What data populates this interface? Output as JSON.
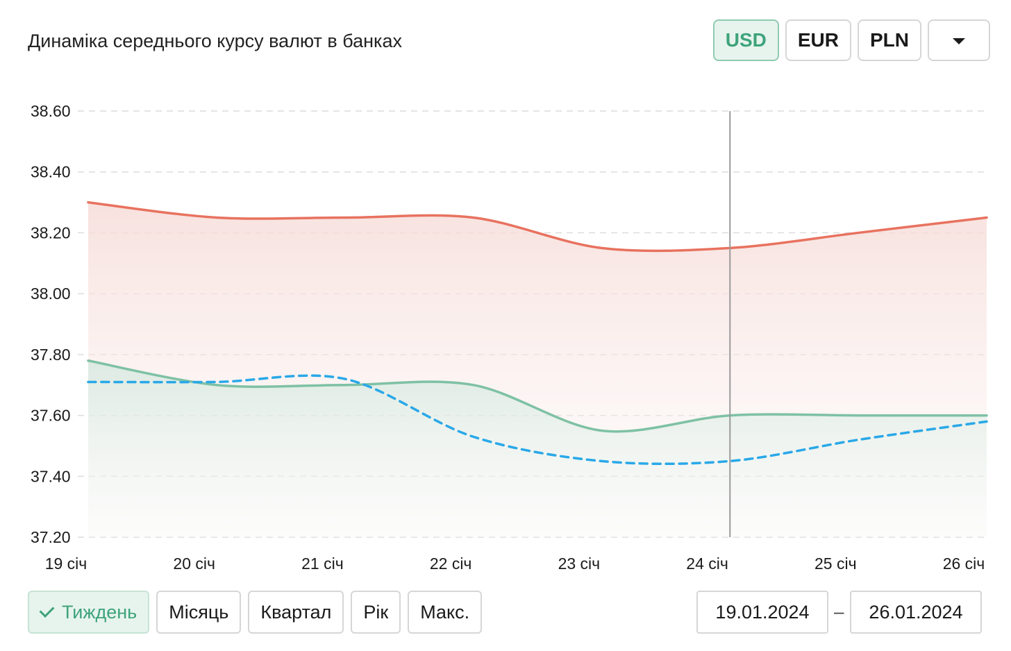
{
  "title": "Динаміка середнього курсу валют в банках",
  "currencies": [
    {
      "label": "USD",
      "active": true
    },
    {
      "label": "EUR",
      "active": false
    },
    {
      "label": "PLN",
      "active": false
    }
  ],
  "periods": [
    {
      "label": "Тиждень",
      "active": true
    },
    {
      "label": "Місяць",
      "active": false
    },
    {
      "label": "Квартал",
      "active": false
    },
    {
      "label": "Рік",
      "active": false
    },
    {
      "label": "Макс.",
      "active": false
    }
  ],
  "date_range": {
    "from": "19.01.2024",
    "separator": "–",
    "to": "26.01.2024"
  },
  "colors": {
    "sell": "#e8725f",
    "buy": "#7ec1a4",
    "nbu": "#29a8e8",
    "active_accent": "#3ea37a"
  },
  "chart_data": {
    "type": "line",
    "categories": [
      "19 січ",
      "20 січ",
      "21 січ",
      "22 січ",
      "23 січ",
      "24 січ",
      "25 січ",
      "26 січ"
    ],
    "series": [
      {
        "values": [
          38.3,
          38.25,
          38.25,
          38.25,
          38.15,
          38.15,
          38.2,
          38.25
        ],
        "style": "solid",
        "fill": true,
        "color": "#e8725f"
      },
      {
        "values": [
          37.78,
          37.7,
          37.7,
          37.7,
          37.55,
          37.6,
          37.6,
          37.6
        ],
        "style": "solid",
        "fill": true,
        "color": "#7ec1a4"
      },
      {
        "values": [
          37.71,
          37.71,
          37.72,
          37.53,
          37.45,
          37.45,
          37.52,
          37.58
        ],
        "style": "dashed",
        "fill": false,
        "color": "#29a8e8"
      }
    ],
    "yticks": [
      "38.60",
      "38.40",
      "38.20",
      "38.00",
      "37.80",
      "37.60",
      "37.40",
      "37.20"
    ],
    "ylim": [
      37.2,
      38.6
    ],
    "grid": true,
    "crosshair_category": "24 січ"
  }
}
